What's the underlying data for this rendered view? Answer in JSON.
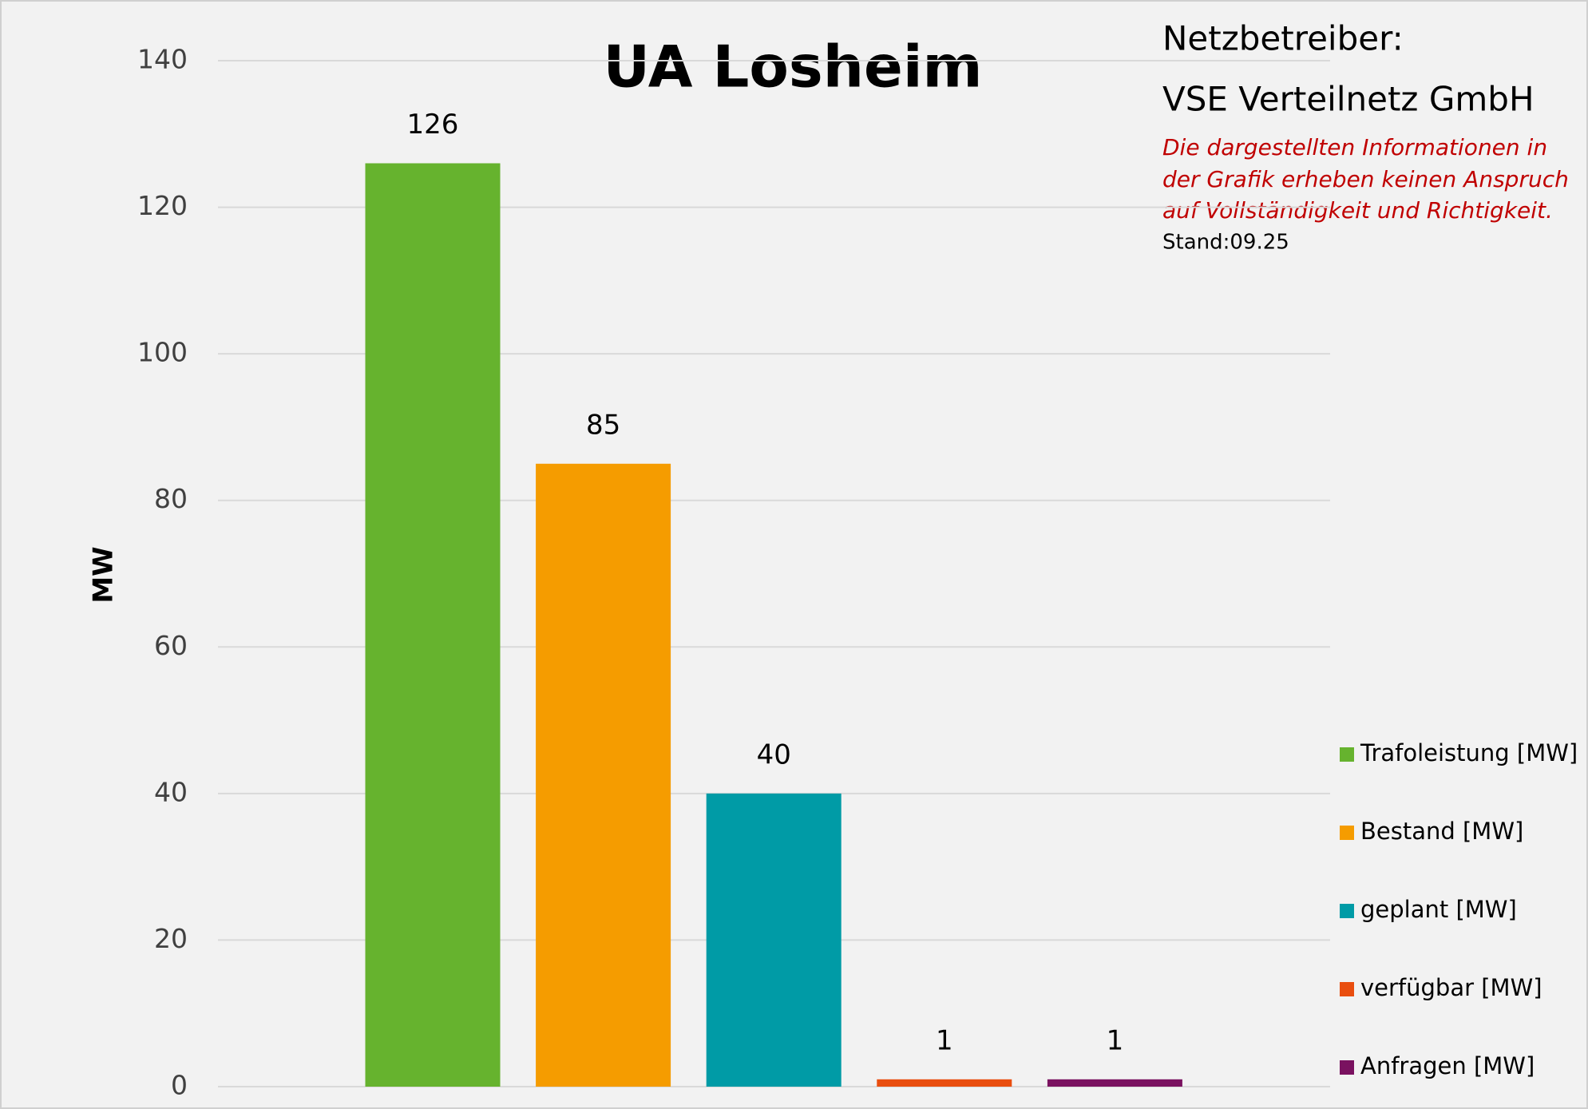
{
  "chart_data": {
    "type": "bar",
    "title": "UA Losheim",
    "y_label": "MW",
    "categories": [
      null
    ],
    "series": [
      {
        "name": "Trafoleistung [MW]",
        "color": "#66b32e",
        "values": [
          126
        ]
      },
      {
        "name": "Bestand [MW]",
        "color": "#f59c00",
        "values": [
          85
        ]
      },
      {
        "name": "geplant [MW]",
        "color": "#009ba6",
        "values": [
          40
        ]
      },
      {
        "name": "verfügbar [MW]",
        "color": "#e94e0f",
        "values": [
          1
        ]
      },
      {
        "name": "Anfragen [MW]",
        "color": "#7a1260",
        "values": [
          1
        ]
      }
    ],
    "ylim": [
      0,
      140
    ],
    "yticks": [
      0,
      20,
      40,
      60,
      80,
      100,
      120,
      140
    ],
    "grid": true,
    "legend": "right",
    "annotations": [
      "Netzbetreiber:",
      "VSE Verteilnetz GmbH",
      "Die dargestellten Informationen in",
      "der Grafik erheben keinen Anspruch",
      "auf Vollständigkeit und Richtigkeit.",
      "Stand:09.25"
    ]
  }
}
